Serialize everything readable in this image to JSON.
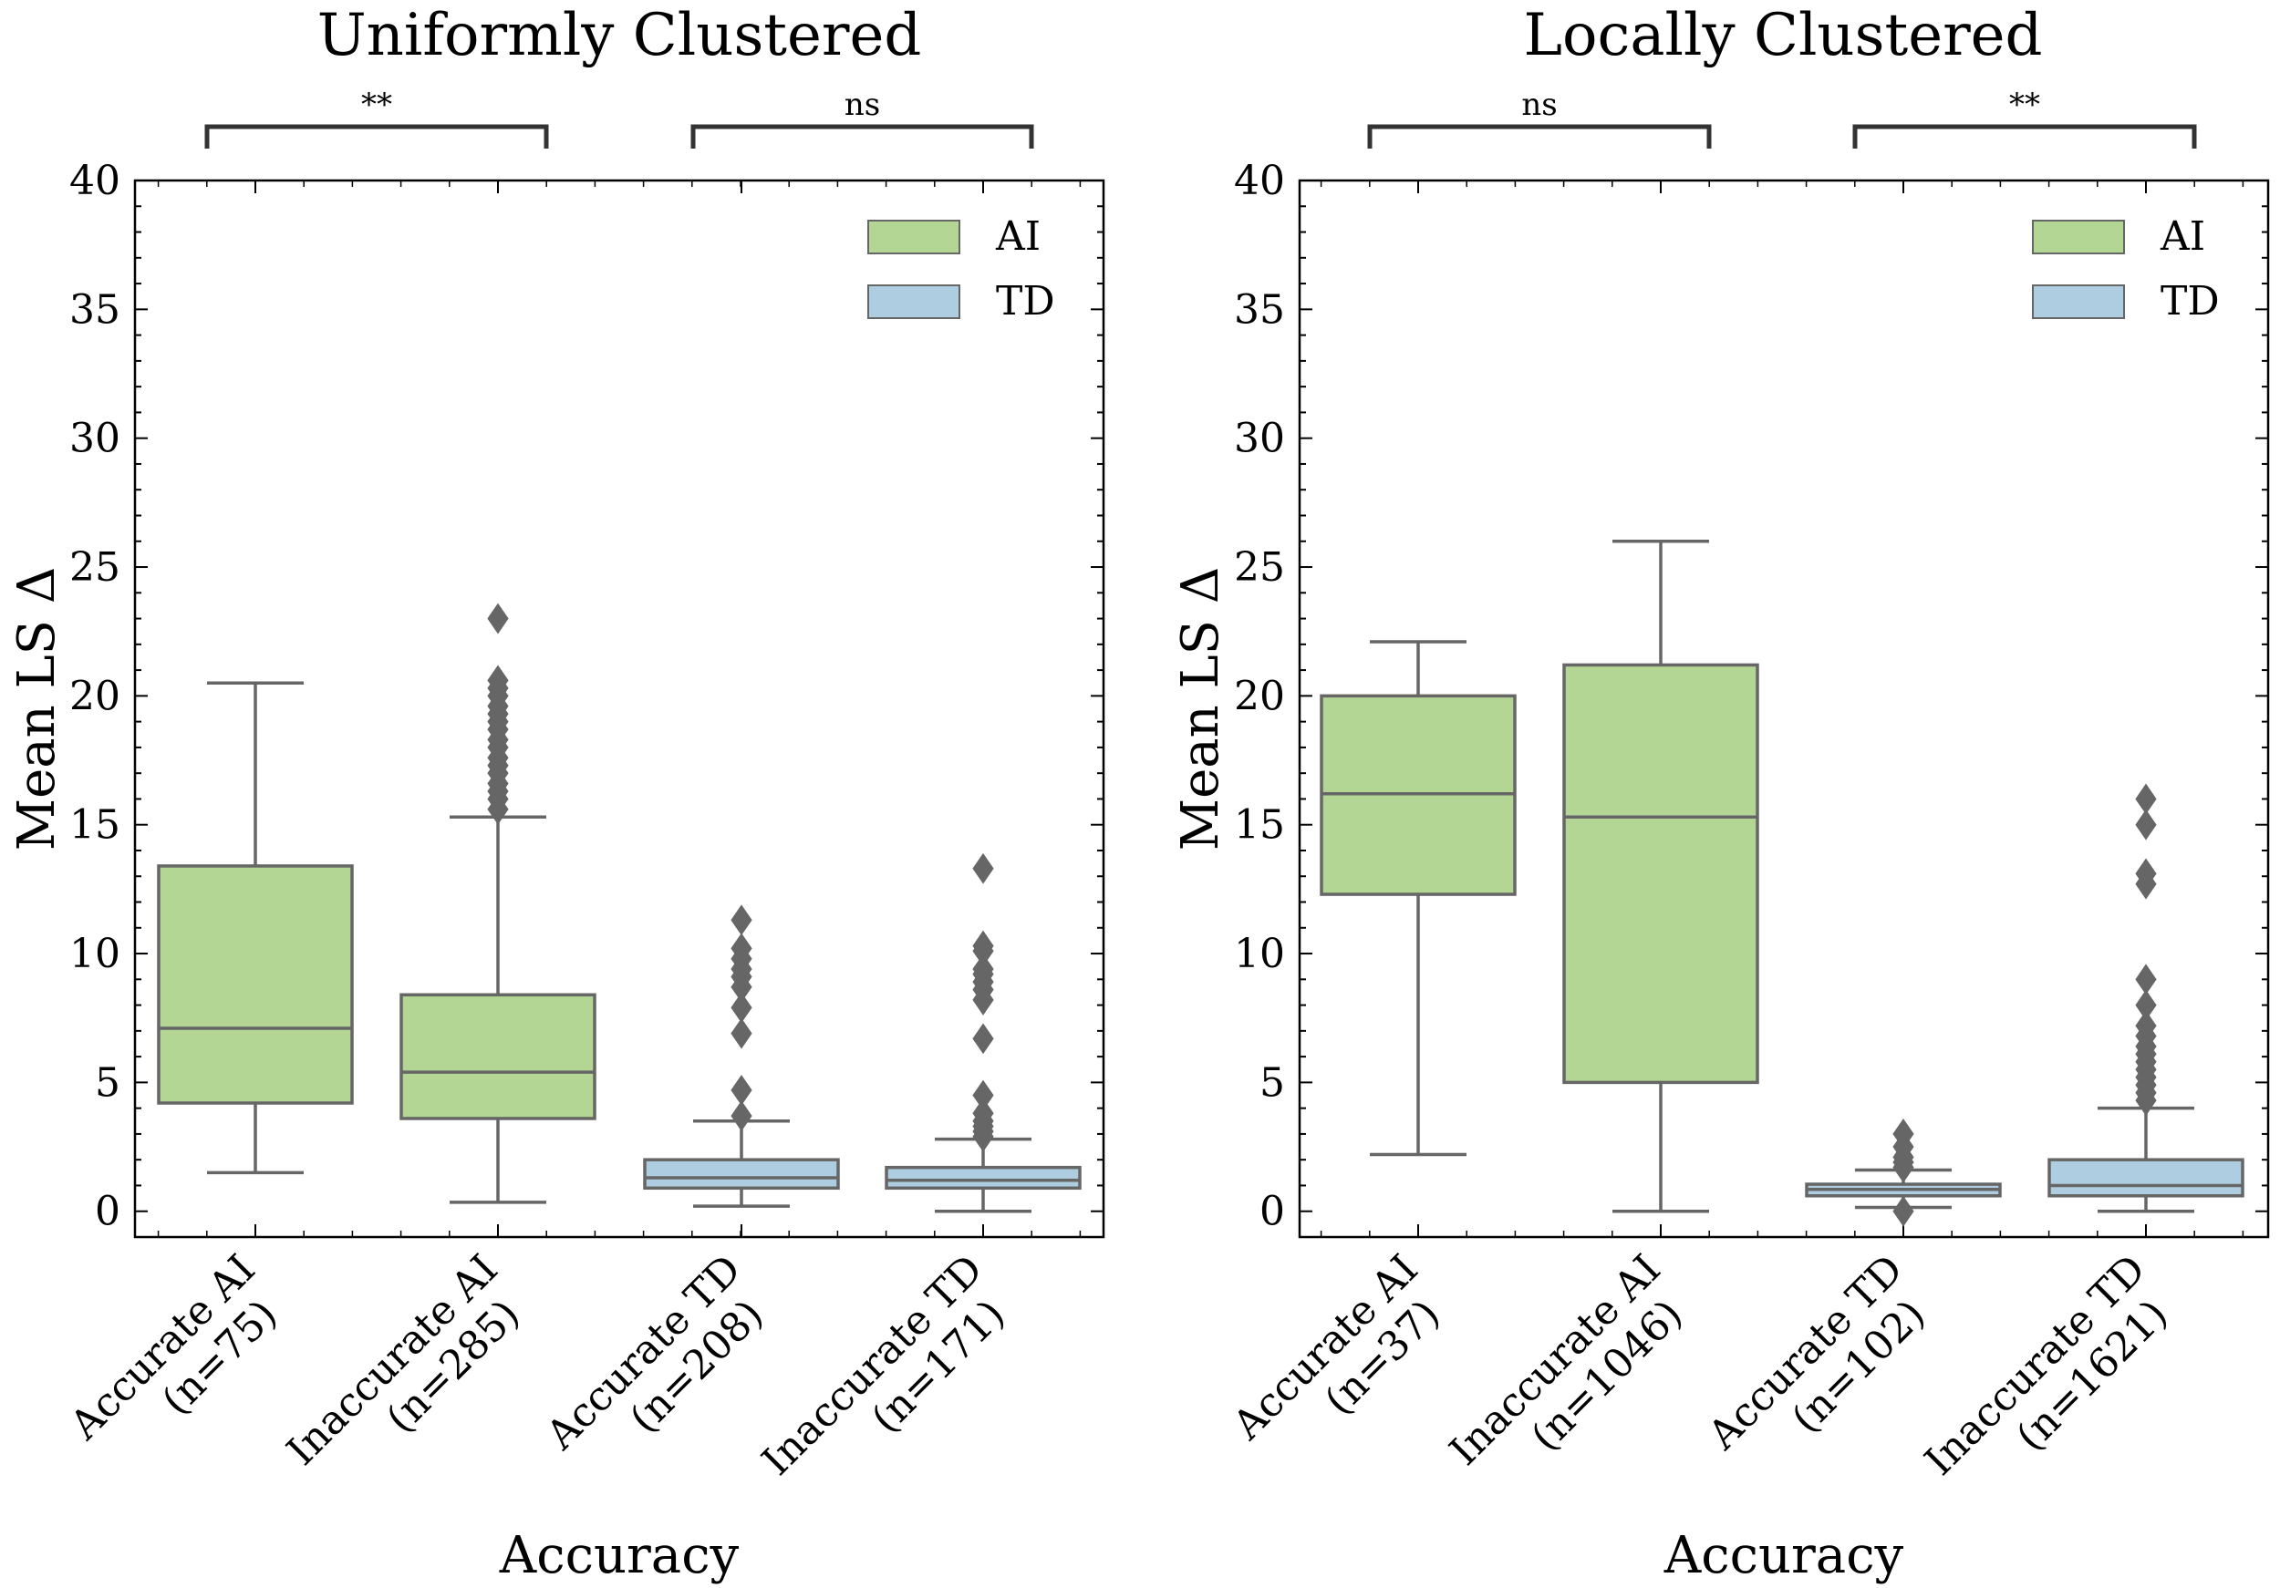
{
  "chart_data": [
    {
      "type": "box",
      "title": "Uniformly Clustered",
      "xlabel": "Accuracy",
      "ylabel": "Mean LS Δ",
      "ylim": [
        -1,
        40
      ],
      "yticks": [
        0,
        5,
        10,
        15,
        20,
        25,
        30,
        35,
        40
      ],
      "legend": {
        "position": "top-right",
        "entries": [
          {
            "name": "AI",
            "color": "#b3d694"
          },
          {
            "name": "TD",
            "color": "#aecde1"
          }
        ]
      },
      "categories": [
        {
          "line1": "Accurate AI",
          "line2": "(n=75)",
          "group": "AI",
          "color": "#b3d694",
          "whisker_low": 1.5,
          "q1": 4.2,
          "median": 7.1,
          "q3": 13.4,
          "whisker_high": 20.5,
          "outliers": []
        },
        {
          "line1": "Inaccurate AI",
          "line2": "(n=285)",
          "group": "AI",
          "color": "#b3d694",
          "whisker_low": 0.35,
          "q1": 3.6,
          "median": 5.4,
          "q3": 8.4,
          "whisker_high": 15.3,
          "outliers": [
            15.6,
            16.0,
            16.3,
            16.6,
            17.0,
            17.3,
            17.6,
            18.0,
            18.3,
            18.7,
            19.0,
            19.3,
            19.6,
            20.0,
            20.3,
            20.6,
            23.0
          ]
        },
        {
          "line1": "Accurate TD",
          "line2": "(n=208)",
          "group": "TD",
          "color": "#aecde1",
          "whisker_low": 0.2,
          "q1": 0.9,
          "median": 1.3,
          "q3": 2.0,
          "whisker_high": 3.5,
          "outliers": [
            3.7,
            4.7,
            6.9,
            7.9,
            8.7,
            9.1,
            9.4,
            9.8,
            10.2,
            11.3
          ]
        },
        {
          "line1": "Inaccurate TD",
          "line2": "(n=171)",
          "group": "TD",
          "color": "#aecde1",
          "whisker_low": 0.0,
          "q1": 0.9,
          "median": 1.2,
          "q3": 1.7,
          "whisker_high": 2.8,
          "outliers": [
            2.9,
            3.1,
            3.3,
            3.5,
            3.8,
            4.5,
            6.7,
            8.2,
            8.6,
            8.9,
            9.2,
            9.4,
            10.1,
            10.3,
            13.3
          ]
        }
      ],
      "annotations": [
        {
          "from": 0,
          "to": 1,
          "label": "**"
        },
        {
          "from": 2,
          "to": 3,
          "label": "ns"
        }
      ]
    },
    {
      "type": "box",
      "title": "Locally Clustered",
      "xlabel": "Accuracy",
      "ylabel": "Mean LS Δ",
      "ylim": [
        -1,
        40
      ],
      "yticks": [
        0,
        5,
        10,
        15,
        20,
        25,
        30,
        35,
        40
      ],
      "legend": {
        "position": "top-right",
        "entries": [
          {
            "name": "AI",
            "color": "#b3d694"
          },
          {
            "name": "TD",
            "color": "#aecde1"
          }
        ]
      },
      "categories": [
        {
          "line1": "Accurate AI",
          "line2": "(n=37)",
          "group": "AI",
          "color": "#b3d694",
          "whisker_low": 2.2,
          "q1": 12.3,
          "median": 16.2,
          "q3": 20.0,
          "whisker_high": 22.1,
          "outliers": []
        },
        {
          "line1": "Inaccurate AI",
          "line2": "(n=1046)",
          "group": "AI",
          "color": "#b3d694",
          "whisker_low": 0.0,
          "q1": 5.0,
          "median": 15.3,
          "q3": 21.2,
          "whisker_high": 26.0,
          "outliers": []
        },
        {
          "line1": "Accurate TD",
          "line2": "(n=102)",
          "group": "TD",
          "color": "#aecde1",
          "whisker_low": 0.15,
          "q1": 0.6,
          "median": 0.85,
          "q3": 1.05,
          "whisker_high": 1.6,
          "outliers": [
            0.0,
            1.7,
            1.9,
            2.1,
            2.5,
            3.0
          ]
        },
        {
          "line1": "Inaccurate TD",
          "line2": "(n=1621)",
          "group": "TD",
          "color": "#aecde1",
          "whisker_low": 0.0,
          "q1": 0.6,
          "median": 1.0,
          "q3": 2.0,
          "whisker_high": 4.0,
          "outliers": [
            4.3,
            4.6,
            4.9,
            5.2,
            5.5,
            5.8,
            6.1,
            6.4,
            6.8,
            7.2,
            8.0,
            9.0,
            12.7,
            13.1,
            15.0,
            16.0
          ]
        }
      ],
      "annotations": [
        {
          "from": 0,
          "to": 1,
          "label": "ns"
        },
        {
          "from": 2,
          "to": 3,
          "label": "**"
        }
      ]
    }
  ]
}
